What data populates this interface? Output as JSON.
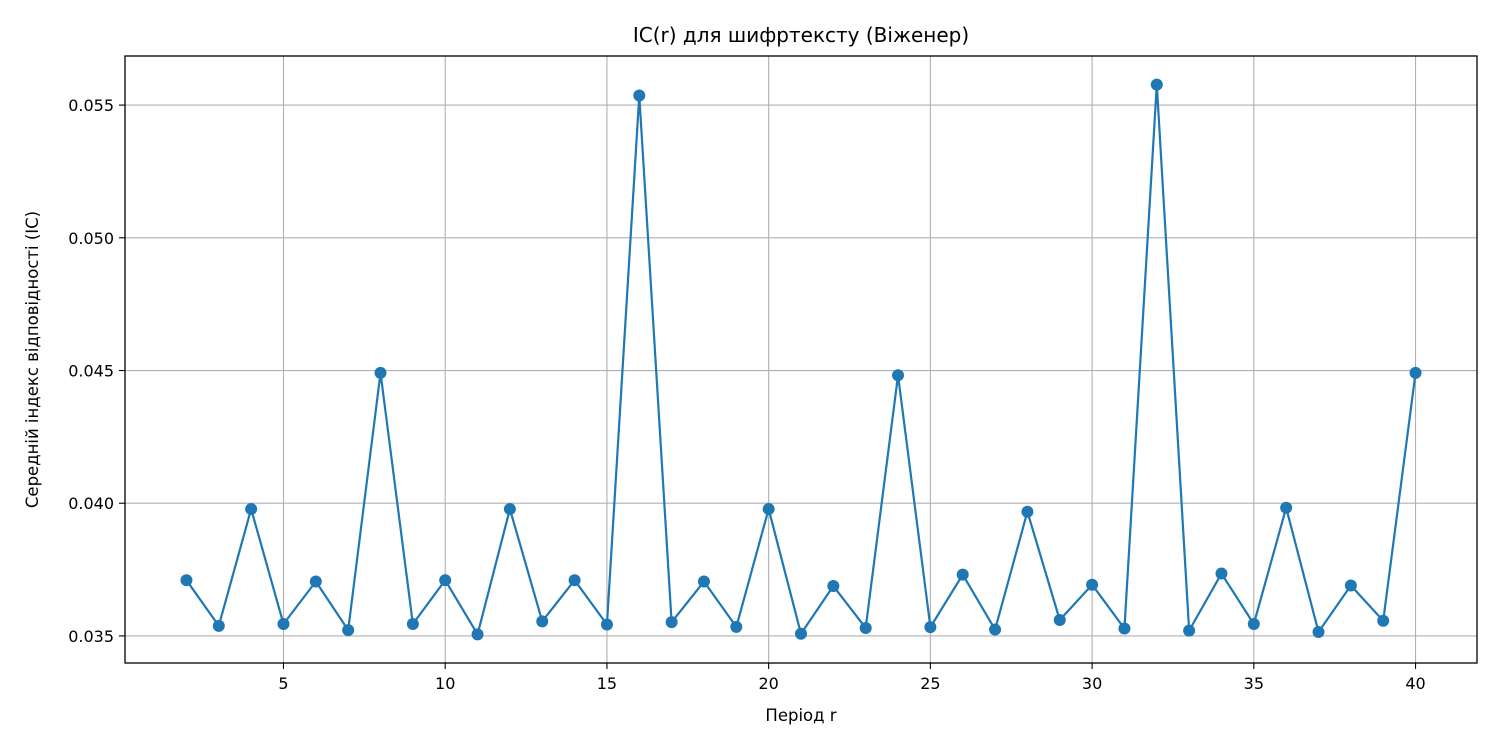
{
  "chart_data": {
    "type": "line",
    "title": "IC(r) для шифртексту (Віженер)",
    "xlabel": "Період r",
    "ylabel": "Середній індекс відповідності (IC)",
    "x": [
      2,
      3,
      4,
      5,
      6,
      7,
      8,
      9,
      10,
      11,
      12,
      13,
      14,
      15,
      16,
      17,
      18,
      19,
      20,
      21,
      22,
      23,
      24,
      25,
      26,
      27,
      28,
      29,
      30,
      31,
      32,
      33,
      34,
      35,
      36,
      37,
      38,
      39,
      40
    ],
    "series": [
      {
        "values": [
          0.0371,
          0.03538,
          0.03978,
          0.03545,
          0.03705,
          0.03522,
          0.04491,
          0.03545,
          0.0371,
          0.03506,
          0.03978,
          0.03555,
          0.0371,
          0.03543,
          0.05536,
          0.03552,
          0.03705,
          0.03534,
          0.03978,
          0.03508,
          0.03688,
          0.0353,
          0.04482,
          0.03533,
          0.03731,
          0.03524,
          0.03968,
          0.0356,
          0.03693,
          0.03528,
          0.05577,
          0.0352,
          0.03735,
          0.03545,
          0.03983,
          0.03515,
          0.0369,
          0.03557,
          0.04491
        ],
        "color": "#1f77b4"
      }
    ],
    "xlim": [
      0.1,
      41.9
    ],
    "ylim": [
      0.03398,
      0.05685
    ],
    "xticks": [
      5,
      10,
      15,
      20,
      25,
      30,
      35,
      40
    ],
    "xtick_labels": [
      "5",
      "10",
      "15",
      "20",
      "25",
      "30",
      "35",
      "40"
    ],
    "yticks": [
      0.035,
      0.04,
      0.045,
      0.05,
      0.055
    ],
    "ytick_labels": [
      "0.035",
      "0.040",
      "0.045",
      "0.050",
      "0.055"
    ],
    "grid": true,
    "marker": "circle"
  }
}
